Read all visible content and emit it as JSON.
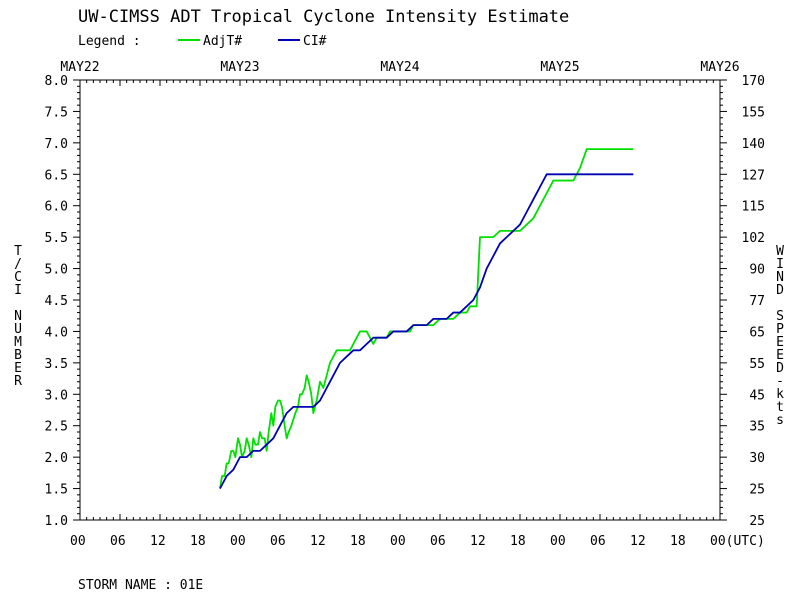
{
  "title": "UW-CIMSS ADT Tropical Cyclone Intensity Estimate",
  "legend": {
    "label": "Legend :",
    "entries": [
      {
        "name": "AdjT#",
        "color": "#00e000"
      },
      {
        "name": "CI#",
        "color": "#0000b4"
      }
    ]
  },
  "storm_name": "STORM NAME : 01E",
  "chart_data": {
    "type": "line",
    "ylabel_left": "T/CI NUMBER",
    "ylabel_right": "WIND SPEED-kts",
    "date_labels": [
      "MAY22",
      "MAY23",
      "MAY24",
      "MAY25",
      "MAY26"
    ],
    "x_tick_labels": [
      "00",
      "06",
      "12",
      "18",
      "00",
      "06",
      "12",
      "18",
      "00",
      "06",
      "12",
      "18",
      "00",
      "06",
      "12",
      "18",
      "00(UTC)"
    ],
    "xlim_hours": [
      0,
      96
    ],
    "ylim": [
      1.0,
      8.0
    ],
    "y_ticks_left": [
      "1.0",
      "1.5",
      "2.0",
      "2.5",
      "3.0",
      "3.5",
      "4.0",
      "4.5",
      "5.0",
      "5.5",
      "6.0",
      "6.5",
      "7.0",
      "7.5",
      "8.0"
    ],
    "y_ticks_right": [
      "25",
      "25",
      "30",
      "35",
      "45",
      "55",
      "65",
      "77",
      "90",
      "102",
      "115",
      "127",
      "140",
      "155",
      "170"
    ],
    "grid": false,
    "series": [
      {
        "name": "AdjT#",
        "color": "#00e000",
        "x": [
          21.0,
          21.3,
          21.7,
          22.0,
          22.3,
          22.7,
          23.0,
          23.3,
          23.7,
          24.0,
          24.3,
          24.7,
          25.0,
          25.3,
          25.7,
          26.0,
          26.3,
          26.7,
          27.0,
          27.3,
          27.7,
          28.0,
          28.3,
          28.7,
          29.0,
          29.3,
          29.7,
          30.0,
          30.3,
          30.7,
          31.0,
          31.3,
          31.7,
          32.0,
          32.3,
          32.7,
          33.0,
          33.3,
          33.7,
          34.0,
          34.3,
          34.7,
          35.0,
          35.5,
          36.0,
          36.5,
          37.0,
          37.5,
          38.0,
          38.5,
          39.0,
          39.5,
          40.0,
          40.5,
          41.0,
          41.5,
          42.0,
          42.5,
          43.0,
          43.5,
          44.0,
          44.5,
          45.0,
          45.5,
          46.0,
          46.5,
          47.0,
          47.5,
          48.0,
          48.5,
          49.0,
          49.5,
          50.0,
          50.5,
          51.0,
          51.5,
          52.0,
          52.5,
          53.0,
          54.0,
          55.0,
          56.0,
          57.0,
          58.0,
          58.5,
          59.0,
          59.5,
          60.0,
          61.0,
          62.0,
          63.0,
          64.0,
          65.0,
          66.0,
          67.0,
          68.0,
          69.0,
          70.0,
          71.0,
          71.5,
          72.0,
          72.5,
          73.0,
          74.0,
          75.0,
          76.0,
          77.0,
          78.0,
          79.0,
          80.0,
          81.0,
          82.0,
          83.0
        ],
        "y": [
          1.5,
          1.7,
          1.7,
          1.9,
          1.9,
          2.1,
          2.1,
          2.0,
          2.3,
          2.2,
          2.0,
          2.1,
          2.3,
          2.2,
          2.0,
          2.3,
          2.2,
          2.2,
          2.4,
          2.3,
          2.3,
          2.1,
          2.4,
          2.7,
          2.5,
          2.8,
          2.9,
          2.9,
          2.8,
          2.5,
          2.3,
          2.4,
          2.5,
          2.6,
          2.7,
          2.8,
          3.0,
          3.0,
          3.1,
          3.3,
          3.2,
          3.0,
          2.7,
          2.9,
          3.2,
          3.1,
          3.3,
          3.5,
          3.6,
          3.7,
          3.7,
          3.7,
          3.7,
          3.7,
          3.8,
          3.9,
          4.0,
          4.0,
          4.0,
          3.9,
          3.8,
          3.9,
          3.9,
          3.9,
          3.9,
          4.0,
          4.0,
          4.0,
          4.0,
          4.0,
          4.0,
          4.0,
          4.1,
          4.1,
          4.1,
          4.1,
          4.1,
          4.1,
          4.1,
          4.2,
          4.2,
          4.2,
          4.3,
          4.3,
          4.4,
          4.4,
          4.4,
          5.5,
          5.5,
          5.5,
          5.6,
          5.6,
          5.6,
          5.6,
          5.7,
          5.8,
          6.0,
          6.2,
          6.4,
          6.4,
          6.4,
          6.4,
          6.4,
          6.4,
          6.6,
          6.9,
          6.9,
          6.9,
          6.9,
          6.9,
          6.9,
          6.9,
          6.9
        ]
      },
      {
        "name": "CI#",
        "color": "#0000b4",
        "x": [
          21.0,
          22.0,
          23.0,
          24.0,
          25.0,
          26.0,
          27.0,
          28.0,
          29.0,
          30.0,
          31.0,
          32.0,
          33.0,
          34.0,
          35.0,
          36.0,
          37.0,
          38.0,
          39.0,
          40.0,
          41.0,
          42.0,
          43.0,
          44.0,
          45.0,
          46.0,
          47.0,
          48.0,
          49.0,
          50.0,
          51.0,
          52.0,
          53.0,
          54.0,
          55.0,
          56.0,
          57.0,
          58.0,
          59.0,
          60.0,
          61.0,
          62.0,
          63.0,
          64.0,
          65.0,
          66.0,
          67.0,
          68.0,
          69.0,
          70.0,
          71.0,
          72.0,
          73.0,
          74.0,
          75.0,
          76.0,
          77.0,
          78.0,
          79.0,
          80.0,
          81.0,
          82.0,
          83.0
        ],
        "y": [
          1.5,
          1.7,
          1.8,
          2.0,
          2.0,
          2.1,
          2.1,
          2.2,
          2.3,
          2.5,
          2.7,
          2.8,
          2.8,
          2.8,
          2.8,
          2.9,
          3.1,
          3.3,
          3.5,
          3.6,
          3.7,
          3.7,
          3.8,
          3.9,
          3.9,
          3.9,
          4.0,
          4.0,
          4.0,
          4.1,
          4.1,
          4.1,
          4.2,
          4.2,
          4.2,
          4.3,
          4.3,
          4.4,
          4.5,
          4.7,
          5.0,
          5.2,
          5.4,
          5.5,
          5.6,
          5.7,
          5.9,
          6.1,
          6.3,
          6.5,
          6.5,
          6.5,
          6.5,
          6.5,
          6.5,
          6.5,
          6.5,
          6.5,
          6.5,
          6.5,
          6.5,
          6.5,
          6.5
        ]
      }
    ]
  }
}
